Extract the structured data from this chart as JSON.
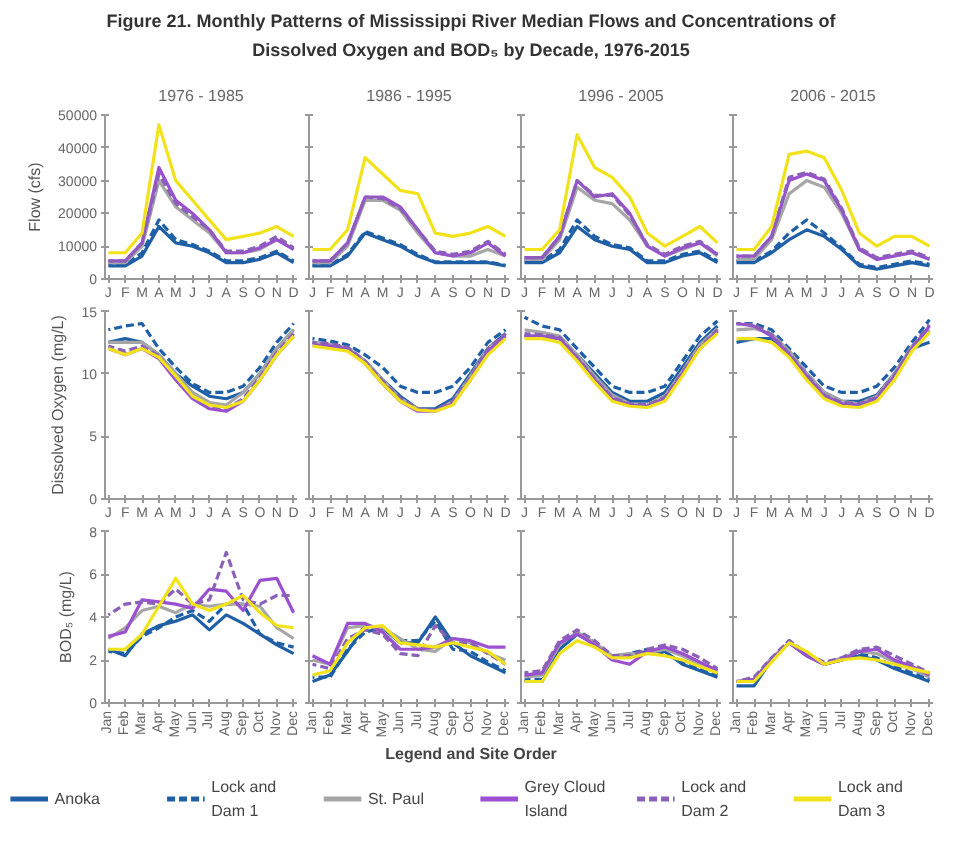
{
  "chart_data": [
    {
      "type": "other",
      "title": "Figure 21. Monthly Patterns of Mississippi River Median Flows and Concentrations of Dissolved Oxygen and BOD₅ by Decade, 1976-2015"
    },
    {
      "type": "line",
      "title": "1976 - 1985",
      "ylabel": "Flow (cfs)",
      "categories": [
        "J",
        "F",
        "M",
        "A",
        "M",
        "J",
        "J",
        "A",
        "S",
        "O",
        "N",
        "D"
      ],
      "ylim": [
        0,
        50000
      ],
      "yticks": [
        0,
        10000,
        20000,
        30000,
        40000,
        50000
      ],
      "legend": "bottom",
      "legend_title": "Legend and Site Order",
      "series": [
        {
          "name": "Anoka",
          "color": "#1f5fa5",
          "line_style": "solid",
          "values": [
            4000,
            4000,
            7000,
            16000,
            11000,
            10000,
            8000,
            5000,
            5000,
            6000,
            8000,
            5000
          ]
        },
        {
          "name": "Lock and Dam 1",
          "color": "#1f5fa5",
          "line_style": "dashed",
          "values": [
            4500,
            4500,
            8000,
            18000,
            12000,
            10500,
            8500,
            5500,
            5500,
            6500,
            8500,
            5500
          ]
        },
        {
          "name": "St. Paul",
          "color": "#a6a6a6",
          "line_style": "solid",
          "values": [
            5000,
            5000,
            10000,
            30000,
            22000,
            18000,
            14000,
            8000,
            8000,
            9000,
            12000,
            9000
          ]
        },
        {
          "name": "Grey Cloud Island",
          "color": "#9a50d0",
          "line_style": "solid",
          "values": [
            5500,
            5500,
            11000,
            34000,
            24000,
            20000,
            15000,
            8000,
            8000,
            9500,
            12000,
            9000
          ]
        },
        {
          "name": "Lock and Dam 2",
          "color": "#8a60b8",
          "line_style": "dashed",
          "values": [
            5500,
            5500,
            11000,
            32000,
            23000,
            19000,
            15000,
            8500,
            8500,
            10000,
            13000,
            9500
          ]
        },
        {
          "name": "Lock and Dam 3",
          "color": "#f2e21a",
          "line_style": "solid",
          "values": [
            8000,
            8000,
            14000,
            47000,
            30000,
            24000,
            18000,
            12000,
            13000,
            14000,
            16000,
            13000
          ]
        }
      ]
    },
    {
      "type": "line",
      "title": "1986 - 1995",
      "tick_labels": "x",
      "categories": [
        "J",
        "F",
        "M",
        "A",
        "M",
        "J",
        "J",
        "A",
        "S",
        "O",
        "N",
        "D"
      ],
      "ylim": [
        0,
        50000
      ],
      "yticks": [
        0,
        10000,
        20000,
        30000,
        40000,
        50000
      ],
      "series": [
        {
          "color": "#1f5fa5",
          "line_style": "solid",
          "values": [
            4000,
            4000,
            7000,
            14000,
            12000,
            10000,
            7000,
            5000,
            5000,
            5000,
            5000,
            4000
          ]
        },
        {
          "color": "#1f5fa5",
          "line_style": "dashed",
          "values": [
            4200,
            4200,
            7500,
            14500,
            12500,
            10500,
            7500,
            5200,
            5200,
            5200,
            5200,
            4200
          ]
        },
        {
          "color": "#a6a6a6",
          "line_style": "solid",
          "values": [
            5000,
            5000,
            10000,
            24000,
            24000,
            21000,
            14000,
            8000,
            7000,
            7000,
            9000,
            7000
          ]
        },
        {
          "color": "#9a50d0",
          "line_style": "solid",
          "values": [
            5500,
            5500,
            11000,
            25000,
            25000,
            22000,
            15000,
            8000,
            7000,
            8000,
            11000,
            7000
          ]
        },
        {
          "color": "#8a60b8",
          "line_style": "dashed",
          "values": [
            5500,
            5500,
            11000,
            25000,
            24500,
            21500,
            15000,
            8500,
            7500,
            8500,
            11500,
            7500
          ]
        },
        {
          "color": "#f2e21a",
          "line_style": "solid",
          "values": [
            9000,
            9000,
            15000,
            37000,
            32000,
            27000,
            26000,
            14000,
            13000,
            14000,
            16000,
            13000
          ]
        }
      ]
    },
    {
      "type": "line",
      "title": "1996 - 2005",
      "tick_labels": "x",
      "categories": [
        "J",
        "F",
        "M",
        "A",
        "M",
        "J",
        "J",
        "A",
        "S",
        "O",
        "N",
        "D"
      ],
      "ylim": [
        0,
        50000
      ],
      "yticks": [
        0,
        10000,
        20000,
        30000,
        40000,
        50000
      ],
      "series": [
        {
          "color": "#1f5fa5",
          "line_style": "solid",
          "values": [
            5000,
            5000,
            8000,
            16000,
            12000,
            10000,
            9000,
            5000,
            5000,
            7000,
            8000,
            5000
          ]
        },
        {
          "color": "#1f5fa5",
          "line_style": "dashed",
          "values": [
            5500,
            5500,
            9000,
            18000,
            13000,
            10500,
            9500,
            5500,
            5500,
            7500,
            8500,
            5500
          ]
        },
        {
          "color": "#a6a6a6",
          "line_style": "solid",
          "values": [
            6000,
            6000,
            12000,
            28000,
            24000,
            23000,
            18000,
            10000,
            7000,
            9000,
            11000,
            7000
          ]
        },
        {
          "color": "#9a50d0",
          "line_style": "solid",
          "values": [
            6500,
            6500,
            13000,
            30000,
            25000,
            26000,
            20000,
            10000,
            7000,
            9500,
            11000,
            7500
          ]
        },
        {
          "color": "#8a60b8",
          "line_style": "dashed",
          "values": [
            6500,
            6500,
            13000,
            30000,
            25500,
            25500,
            19500,
            10500,
            7500,
            10000,
            11500,
            7500
          ]
        },
        {
          "color": "#f2e21a",
          "line_style": "solid",
          "values": [
            9000,
            9000,
            15000,
            44000,
            34000,
            31000,
            25000,
            14000,
            10000,
            13000,
            16000,
            11000
          ]
        }
      ]
    },
    {
      "type": "line",
      "title": "2006 - 2015",
      "tick_labels": "x",
      "categories": [
        "J",
        "F",
        "M",
        "A",
        "M",
        "J",
        "J",
        "A",
        "S",
        "O",
        "N",
        "D"
      ],
      "ylim": [
        0,
        50000
      ],
      "yticks": [
        0,
        10000,
        20000,
        30000,
        40000,
        50000
      ],
      "series": [
        {
          "color": "#1f5fa5",
          "line_style": "solid",
          "values": [
            5000,
            5000,
            8000,
            12000,
            15000,
            13000,
            9000,
            4000,
            3000,
            4000,
            5000,
            4000
          ]
        },
        {
          "color": "#1f5fa5",
          "line_style": "dashed",
          "values": [
            5500,
            5500,
            8500,
            14000,
            18000,
            14000,
            9500,
            4500,
            3500,
            4500,
            5500,
            4500
          ]
        },
        {
          "color": "#a6a6a6",
          "line_style": "solid",
          "values": [
            6000,
            6000,
            12000,
            26000,
            30000,
            28000,
            20000,
            9000,
            6000,
            7000,
            8000,
            6000
          ]
        },
        {
          "color": "#9a50d0",
          "line_style": "solid",
          "values": [
            7000,
            7000,
            13000,
            30000,
            32000,
            30000,
            21000,
            9000,
            6000,
            7000,
            8000,
            6000
          ]
        },
        {
          "color": "#8a60b8",
          "line_style": "dashed",
          "values": [
            7000,
            7000,
            13000,
            31000,
            32500,
            30500,
            21500,
            9500,
            6500,
            7500,
            8500,
            6500
          ]
        },
        {
          "color": "#f2e21a",
          "line_style": "solid",
          "values": [
            9000,
            9000,
            16000,
            38000,
            39000,
            37000,
            27000,
            14000,
            10000,
            13000,
            13000,
            10000
          ]
        }
      ]
    },
    {
      "type": "line",
      "ylabel": "Dissolved Oxygen (mg/L)",
      "categories": [
        "J",
        "F",
        "M",
        "A",
        "M",
        "J",
        "J",
        "A",
        "S",
        "O",
        "N",
        "D"
      ],
      "ylim": [
        0,
        15
      ],
      "yticks": [
        0,
        5,
        10,
        15
      ],
      "series": [
        {
          "color": "#1f5fa5",
          "line_style": "solid",
          "values": [
            12.5,
            12.8,
            12.5,
            11.5,
            10,
            9,
            8.2,
            8,
            8.5,
            10,
            12,
            13.5
          ]
        },
        {
          "color": "#1f5fa5",
          "line_style": "dashed",
          "values": [
            13.5,
            13.8,
            14,
            12,
            10.5,
            9.2,
            8.5,
            8.5,
            9,
            10.5,
            12.5,
            14
          ]
        },
        {
          "color": "#a6a6a6",
          "line_style": "solid",
          "values": [
            12.5,
            12.5,
            12.5,
            11.5,
            10,
            8.5,
            7.7,
            7.5,
            8.5,
            10,
            12,
            13.5
          ]
        },
        {
          "color": "#9a50d0",
          "line_style": "solid",
          "values": [
            12,
            11.5,
            12,
            11.2,
            9.5,
            8,
            7.2,
            7,
            7.8,
            9.5,
            11.5,
            13
          ]
        },
        {
          "color": "#8a60b8",
          "line_style": "dashed",
          "values": [
            12.2,
            11.8,
            12.2,
            11.4,
            9.7,
            8.2,
            7.4,
            7.2,
            8,
            9.7,
            11.7,
            13.2
          ]
        },
        {
          "color": "#f2e21a",
          "line_style": "solid",
          "values": [
            12,
            11.5,
            12,
            11.3,
            9.8,
            8.2,
            7.5,
            7.3,
            7.8,
            9.5,
            11.5,
            13
          ]
        }
      ]
    },
    {
      "type": "line",
      "tick_labels": "x",
      "categories": [
        "J",
        "F",
        "M",
        "A",
        "M",
        "J",
        "J",
        "A",
        "S",
        "O",
        "N",
        "D"
      ],
      "ylim": [
        0,
        15
      ],
      "yticks": [
        0,
        5,
        10,
        15
      ],
      "series": [
        {
          "color": "#1f5fa5",
          "line_style": "solid",
          "values": [
            12.5,
            12.3,
            12,
            11,
            9.5,
            8.2,
            7.2,
            7.2,
            8,
            10,
            12,
            13.2
          ]
        },
        {
          "color": "#1f5fa5",
          "line_style": "dashed",
          "values": [
            12.8,
            12.6,
            12.3,
            11.5,
            10.5,
            9,
            8.5,
            8.5,
            9,
            10.5,
            12.5,
            13.5
          ]
        },
        {
          "color": "#a6a6a6",
          "line_style": "solid",
          "values": [
            12.5,
            12.3,
            12,
            11,
            9.5,
            8,
            7.2,
            7,
            7.8,
            9.8,
            12,
            13
          ]
        },
        {
          "color": "#9a50d0",
          "line_style": "solid",
          "values": [
            12.3,
            12.2,
            12,
            10.8,
            9.2,
            7.8,
            7,
            7,
            7.6,
            9.5,
            11.8,
            13
          ]
        },
        {
          "color": "#8a60b8",
          "line_style": "dashed",
          "values": [
            12.5,
            12.4,
            12.1,
            11,
            9.4,
            8,
            7.2,
            7.1,
            7.8,
            9.7,
            12,
            13.2
          ]
        },
        {
          "color": "#f2e21a",
          "line_style": "solid",
          "values": [
            12.2,
            12,
            11.8,
            10.8,
            9.2,
            7.8,
            7.1,
            7,
            7.5,
            9.5,
            11.5,
            12.8
          ]
        }
      ]
    },
    {
      "type": "line",
      "tick_labels": "x",
      "categories": [
        "J",
        "F",
        "M",
        "A",
        "M",
        "J",
        "J",
        "A",
        "S",
        "O",
        "N",
        "D"
      ],
      "ylim": [
        0,
        15
      ],
      "yticks": [
        0,
        5,
        10,
        15
      ],
      "series": [
        {
          "color": "#1f5fa5",
          "line_style": "solid",
          "values": [
            13,
            13,
            12.8,
            11.5,
            10,
            8.5,
            7.8,
            7.8,
            8.5,
            10.5,
            12.5,
            13.8
          ]
        },
        {
          "color": "#1f5fa5",
          "line_style": "dashed",
          "values": [
            14.5,
            13.8,
            13.5,
            12,
            10.5,
            9,
            8.5,
            8.5,
            9,
            11,
            13,
            14.2
          ]
        },
        {
          "color": "#a6a6a6",
          "line_style": "solid",
          "values": [
            13.5,
            13.3,
            13,
            11.5,
            9.8,
            8.3,
            7.6,
            7.5,
            8.2,
            10.2,
            12.3,
            13.6
          ]
        },
        {
          "color": "#9a50d0",
          "line_style": "solid",
          "values": [
            13,
            13,
            12.8,
            11.2,
            9.5,
            8,
            7.5,
            7.4,
            8,
            10,
            12,
            13.4
          ]
        },
        {
          "color": "#8a60b8",
          "line_style": "dashed",
          "values": [
            13.2,
            13.1,
            12.9,
            11.3,
            9.6,
            8.1,
            7.6,
            7.5,
            8.1,
            10.1,
            12.1,
            13.5
          ]
        },
        {
          "color": "#f2e21a",
          "line_style": "solid",
          "values": [
            12.8,
            12.8,
            12.5,
            11,
            9.3,
            7.8,
            7.4,
            7.3,
            7.8,
            9.8,
            12,
            13.2
          ]
        }
      ]
    },
    {
      "type": "line",
      "tick_labels": "x",
      "categories": [
        "J",
        "F",
        "M",
        "A",
        "M",
        "J",
        "J",
        "A",
        "S",
        "O",
        "N",
        "D"
      ],
      "ylim": [
        0,
        15
      ],
      "yticks": [
        0,
        5,
        10,
        15
      ],
      "series": [
        {
          "color": "#1f5fa5",
          "line_style": "solid",
          "values": [
            12.5,
            12.8,
            12.8,
            11.8,
            10,
            8.5,
            7.8,
            7.8,
            8.3,
            10,
            12,
            12.5
          ]
        },
        {
          "color": "#1f5fa5",
          "line_style": "dashed",
          "values": [
            14,
            14,
            13.5,
            12,
            10.5,
            9,
            8.5,
            8.5,
            9,
            10.5,
            12.5,
            14.3
          ]
        },
        {
          "color": "#a6a6a6",
          "line_style": "solid",
          "values": [
            13.5,
            13.6,
            13.2,
            11.8,
            10,
            8.5,
            7.8,
            7.6,
            8.2,
            10,
            12.2,
            13.5
          ]
        },
        {
          "color": "#9a50d0",
          "line_style": "solid",
          "values": [
            14,
            13.8,
            13,
            11.5,
            9.8,
            8.2,
            7.6,
            7.5,
            8,
            9.8,
            12,
            13.8
          ]
        },
        {
          "color": "#8a60b8",
          "line_style": "dashed",
          "values": [
            14,
            13.9,
            13.1,
            11.6,
            9.9,
            8.3,
            7.7,
            7.6,
            8.1,
            9.9,
            12.1,
            13.9
          ]
        },
        {
          "color": "#f2e21a",
          "line_style": "solid",
          "values": [
            12.8,
            12.8,
            12.5,
            11.3,
            9.5,
            8,
            7.4,
            7.3,
            7.8,
            9.5,
            11.8,
            13.3
          ]
        }
      ]
    },
    {
      "type": "line",
      "ylabel": "BOD₅ (mg/L)",
      "categories": [
        "Jan",
        "Feb",
        "Mar",
        "Apr",
        "May",
        "Jun",
        "Jul",
        "Aug",
        "Sep",
        "Oct",
        "Nov",
        "Dec"
      ],
      "ylim": [
        0,
        8
      ],
      "yticks": [
        0,
        2,
        4,
        6,
        8
      ],
      "series": [
        {
          "color": "#1f5fa5",
          "line_style": "solid",
          "values": [
            2.5,
            2.2,
            3.2,
            3.6,
            3.8,
            4.1,
            3.4,
            4.1,
            3.7,
            3.2,
            2.7,
            2.3
          ]
        },
        {
          "color": "#1f5fa5",
          "line_style": "dashed",
          "values": [
            2.4,
            2.3,
            3.1,
            3.5,
            4,
            4.3,
            3.8,
            4.6,
            4.6,
            3.2,
            2.8,
            2.6
          ]
        },
        {
          "color": "#a6a6a6",
          "line_style": "solid",
          "values": [
            3,
            3.5,
            4.3,
            4.5,
            4.2,
            4.6,
            4.5,
            4.6,
            4.6,
            4.5,
            3.5,
            3
          ]
        },
        {
          "color": "#9a50d0",
          "line_style": "solid",
          "values": [
            3.1,
            3.3,
            4.8,
            4.7,
            4.6,
            4.4,
            5.3,
            5.2,
            4.3,
            5.7,
            5.8,
            4.2
          ]
        },
        {
          "color": "#8a60b8",
          "line_style": "dashed",
          "values": [
            4.1,
            4.6,
            4.7,
            4.6,
            5.3,
            4.6,
            4.8,
            7,
            4.8,
            4.6,
            5,
            5
          ]
        },
        {
          "color": "#f2e21a",
          "line_style": "solid",
          "values": [
            2.5,
            2.5,
            3.2,
            4.5,
            5.8,
            4.6,
            4.3,
            4.6,
            5,
            4.2,
            3.6,
            3.5
          ]
        }
      ]
    },
    {
      "type": "line",
      "tick_labels": "x",
      "categories": [
        "Jan",
        "Feb",
        "Mar",
        "Apr",
        "May",
        "Jun",
        "Jul",
        "Aug",
        "Sep",
        "Oct",
        "Nov",
        "Dec"
      ],
      "ylim": [
        0,
        8
      ],
      "yticks": [
        0,
        2,
        4,
        6,
        8
      ],
      "series": [
        {
          "color": "#1f5fa5",
          "line_style": "solid",
          "values": [
            1,
            1.3,
            2.4,
            3.6,
            3.5,
            2.8,
            2.8,
            4,
            2.8,
            2.2,
            1.8,
            1.4
          ]
        },
        {
          "color": "#1f5fa5",
          "line_style": "dashed",
          "values": [
            1.2,
            1.2,
            2.5,
            3.3,
            3.5,
            2.9,
            2.9,
            3.8,
            2.5,
            2.4,
            1.9,
            1.5
          ]
        },
        {
          "color": "#a6a6a6",
          "line_style": "solid",
          "values": [
            2,
            1.8,
            3.5,
            3.6,
            3.5,
            3,
            2.5,
            2.4,
            3,
            2.8,
            2.3,
            2
          ]
        },
        {
          "color": "#9a50d0",
          "line_style": "solid",
          "values": [
            2.2,
            1.8,
            3.7,
            3.7,
            3.3,
            2.5,
            2.5,
            2.6,
            3,
            2.9,
            2.6,
            2.6
          ]
        },
        {
          "color": "#8a60b8",
          "line_style": "dashed",
          "values": [
            1.8,
            1.6,
            3,
            3.4,
            3.2,
            2.3,
            2.2,
            3.6,
            2.8,
            2.8,
            2.3,
            1.8
          ]
        },
        {
          "color": "#f2e21a",
          "line_style": "solid",
          "values": [
            1.3,
            1.5,
            2.8,
            3.5,
            3.6,
            2.8,
            2.7,
            2.6,
            2.8,
            2.6,
            2.4,
            1.8
          ]
        }
      ]
    },
    {
      "type": "line",
      "tick_labels": "x",
      "categories": [
        "Jan",
        "Feb",
        "Mar",
        "Apr",
        "May",
        "Jun",
        "Jul",
        "Aug",
        "Sep",
        "Oct",
        "Nov",
        "Dec"
      ],
      "ylim": [
        0,
        8
      ],
      "yticks": [
        0,
        2,
        4,
        6,
        8
      ],
      "series": [
        {
          "color": "#1f5fa5",
          "line_style": "solid",
          "values": [
            1,
            1,
            2.5,
            3.2,
            2.8,
            2.1,
            2.2,
            2.4,
            2.4,
            1.8,
            1.5,
            1.2
          ]
        },
        {
          "color": "#1f5fa5",
          "line_style": "dashed",
          "values": [
            1.1,
            1.1,
            2.6,
            3.3,
            2.8,
            2.1,
            2.3,
            2.5,
            2.3,
            1.9,
            1.6,
            1.3
          ]
        },
        {
          "color": "#a6a6a6",
          "line_style": "solid",
          "values": [
            1.2,
            1.3,
            2.7,
            3.3,
            2.8,
            2.2,
            2.3,
            2.3,
            2.5,
            2.2,
            1.8,
            1.4
          ]
        },
        {
          "color": "#9a50d0",
          "line_style": "solid",
          "values": [
            1.3,
            1.4,
            2.8,
            3.2,
            2.7,
            2,
            1.8,
            2.4,
            2.6,
            2.3,
            1.9,
            1.5
          ]
        },
        {
          "color": "#8a60b8",
          "line_style": "dashed",
          "values": [
            1.4,
            1.5,
            2.9,
            3.4,
            2.9,
            2.2,
            2.2,
            2.5,
            2.7,
            2.5,
            2.1,
            1.6
          ]
        },
        {
          "color": "#f2e21a",
          "line_style": "solid",
          "values": [
            1,
            1,
            2.3,
            2.9,
            2.6,
            2.1,
            2.1,
            2.3,
            2.2,
            2,
            1.7,
            1.4
          ]
        }
      ]
    },
    {
      "type": "line",
      "tick_labels": "x",
      "categories": [
        "Jan",
        "Feb",
        "Mar",
        "Apr",
        "May",
        "Jun",
        "Jul",
        "Aug",
        "Sep",
        "Oct",
        "Nov",
        "Dec"
      ],
      "ylim": [
        0,
        8
      ],
      "yticks": [
        0,
        2,
        4,
        6,
        8
      ],
      "series": [
        {
          "color": "#1f5fa5",
          "line_style": "solid",
          "values": [
            0.8,
            0.8,
            2,
            2.8,
            2.2,
            1.8,
            2,
            2.2,
            2,
            1.6,
            1.3,
            1
          ]
        },
        {
          "color": "#1f5fa5",
          "line_style": "dashed",
          "values": [
            1,
            1.1,
            2,
            2.9,
            2.3,
            1.8,
            2,
            2.3,
            2.1,
            1.7,
            1.4,
            1.1
          ]
        },
        {
          "color": "#a6a6a6",
          "line_style": "solid",
          "values": [
            1,
            1.1,
            2.1,
            2.8,
            2.3,
            1.8,
            2.1,
            2.4,
            2.3,
            1.9,
            1.6,
            1.2
          ]
        },
        {
          "color": "#9a50d0",
          "line_style": "solid",
          "values": [
            1,
            1.1,
            2,
            2.8,
            2.2,
            1.8,
            2,
            2.4,
            2.5,
            2,
            1.7,
            1.3
          ]
        },
        {
          "color": "#8a60b8",
          "line_style": "dashed",
          "values": [
            1,
            1.2,
            2.1,
            2.9,
            2.3,
            1.9,
            2.1,
            2.5,
            2.6,
            2.2,
            1.8,
            1.4
          ]
        },
        {
          "color": "#f2e21a",
          "line_style": "solid",
          "values": [
            1,
            1,
            1.9,
            2.8,
            2.4,
            1.8,
            2,
            2.1,
            2,
            1.8,
            1.6,
            1.4
          ]
        }
      ]
    }
  ]
}
